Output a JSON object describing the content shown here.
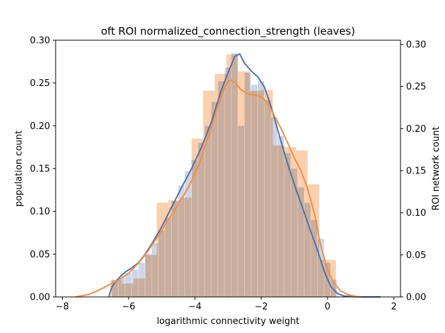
{
  "chart_data": {
    "type": "bar",
    "title": "oft ROI normalized_connection_strength (leaves)",
    "xlabel": "logarithmic connectivity weight",
    "ylabel_left": "population count",
    "ylabel_right": "ROI network count",
    "xlim": [
      -8.2,
      2.2
    ],
    "ylim_left": [
      0,
      0.3
    ],
    "ylim_right": [
      0,
      0.305
    ],
    "x_ticks": [
      -8,
      -6,
      -4,
      -2,
      0,
      2
    ],
    "x_tick_labels": [
      "−8",
      "−6",
      "−4",
      "−2",
      "0",
      "2"
    ],
    "y_ticks_left": [
      0,
      0.05,
      0.1,
      0.15,
      0.2,
      0.25,
      0.3
    ],
    "y_tick_labels_left": [
      "0.00",
      "0.05",
      "0.10",
      "0.15",
      "0.20",
      "0.25",
      "0.30"
    ],
    "y_ticks_right": [
      0,
      0.05,
      0.1,
      0.15,
      0.2,
      0.25,
      0.3
    ],
    "y_tick_labels_right": [
      "0.00",
      "0.05",
      "0.10",
      "0.15",
      "0.20",
      "0.25",
      "0.30"
    ],
    "colors": {
      "population": "#4c72b0",
      "roi": "#f28e3f",
      "population_fill": "#aabbd9",
      "roi_fill": "#f9c8a0"
    },
    "series": [
      {
        "key": "population_hist",
        "kind": "hist",
        "bins": [
          [
            -6.5,
            -6.3,
            0.02
          ],
          [
            -6.3,
            -6.1,
            0.022
          ],
          [
            -6.1,
            -5.9,
            0.028
          ],
          [
            -5.9,
            -5.7,
            0.032
          ],
          [
            -5.7,
            -5.5,
            0.04
          ],
          [
            -5.5,
            -5.3,
            0.05
          ],
          [
            -5.3,
            -5.1,
            0.063
          ],
          [
            -5.1,
            -4.9,
            0.078
          ],
          [
            -4.9,
            -4.7,
            0.093
          ],
          [
            -4.7,
            -4.5,
            0.112
          ],
          [
            -4.5,
            -4.3,
            0.13
          ],
          [
            -4.3,
            -4.1,
            0.147
          ],
          [
            -4.1,
            -3.9,
            0.16
          ],
          [
            -3.9,
            -3.7,
            0.18
          ],
          [
            -3.7,
            -3.5,
            0.2
          ],
          [
            -3.5,
            -3.3,
            0.228
          ],
          [
            -3.3,
            -3.1,
            0.252
          ],
          [
            -3.1,
            -2.9,
            0.268
          ],
          [
            -2.9,
            -2.7,
            0.285
          ],
          [
            -2.7,
            -2.5,
            0.2
          ],
          [
            -2.5,
            -2.3,
            0.262
          ],
          [
            -2.3,
            -2.1,
            0.248
          ],
          [
            -2.1,
            -1.9,
            0.252
          ],
          [
            -1.9,
            -1.7,
            0.23
          ],
          [
            -1.7,
            -1.5,
            0.21
          ],
          [
            -1.5,
            -1.3,
            0.188
          ],
          [
            -1.3,
            -1.1,
            0.168
          ],
          [
            -1.1,
            -0.9,
            0.15
          ],
          [
            -0.9,
            -0.7,
            0.128
          ],
          [
            -0.7,
            -0.5,
            0.11
          ],
          [
            -0.5,
            -0.3,
            0.09
          ],
          [
            -0.3,
            -0.1,
            0.068
          ],
          [
            -0.1,
            0.1,
            0.04
          ],
          [
            0.1,
            0.3,
            0.02
          ]
        ]
      },
      {
        "key": "roi_hist",
        "kind": "hist",
        "bins": [
          [
            -6.55,
            -6.2,
            0.02
          ],
          [
            -6.2,
            -5.85,
            0.016
          ],
          [
            -5.85,
            -5.5,
            0.022
          ],
          [
            -5.5,
            -5.15,
            0.05
          ],
          [
            -5.15,
            -4.8,
            0.112
          ],
          [
            -4.8,
            -4.45,
            0.115
          ],
          [
            -4.45,
            -4.1,
            0.118
          ],
          [
            -4.1,
            -3.75,
            0.188
          ],
          [
            -3.75,
            -3.4,
            0.245
          ],
          [
            -3.4,
            -3.05,
            0.265
          ],
          [
            -3.05,
            -2.7,
            0.288
          ],
          [
            -2.7,
            -2.35,
            0.268
          ],
          [
            -2.35,
            -2.0,
            0.245
          ],
          [
            -2.0,
            -1.65,
            0.246
          ],
          [
            -1.65,
            -1.3,
            0.18
          ],
          [
            -1.3,
            -0.95,
            0.178
          ],
          [
            -0.95,
            -0.6,
            0.174
          ],
          [
            -0.6,
            -0.25,
            0.134
          ],
          [
            -0.25,
            0.1,
            0.044
          ],
          [
            0.1,
            0.25,
            0.044
          ]
        ]
      },
      {
        "key": "population_kde",
        "kind": "line",
        "x": [
          -6.6,
          -6.5,
          -6.3,
          -6.1,
          -5.9,
          -5.7,
          -5.5,
          -5.3,
          -5.0,
          -4.7,
          -4.4,
          -4.1,
          -3.8,
          -3.5,
          -3.2,
          -3.0,
          -2.8,
          -2.65,
          -2.5,
          -2.3,
          -2.1,
          -1.9,
          -1.7,
          -1.5,
          -1.3,
          -1.1,
          -0.9,
          -0.7,
          -0.5,
          -0.3,
          -0.1,
          0.1,
          0.3,
          0.5,
          1.0,
          1.6
        ],
        "y": [
          0.0,
          0.012,
          0.022,
          0.029,
          0.034,
          0.04,
          0.05,
          0.062,
          0.082,
          0.105,
          0.128,
          0.15,
          0.175,
          0.205,
          0.242,
          0.262,
          0.281,
          0.284,
          0.273,
          0.264,
          0.257,
          0.245,
          0.222,
          0.195,
          0.168,
          0.143,
          0.12,
          0.098,
          0.076,
          0.054,
          0.03,
          0.012,
          0.004,
          0.001,
          0.0,
          0.0
        ]
      },
      {
        "key": "roi_kde",
        "kind": "line",
        "x": [
          -7.6,
          -7.2,
          -6.9,
          -6.6,
          -6.3,
          -6.0,
          -5.7,
          -5.4,
          -5.1,
          -4.8,
          -4.5,
          -4.2,
          -3.9,
          -3.6,
          -3.3,
          -3.1,
          -2.95,
          -2.8,
          -2.6,
          -2.4,
          -2.2,
          -2.0,
          -1.8,
          -1.6,
          -1.4,
          -1.2,
          -1.0,
          -0.8,
          -0.6,
          -0.4,
          -0.2,
          0.0,
          0.2,
          0.4,
          0.6,
          0.8,
          1.0
        ],
        "y": [
          0.0,
          0.003,
          0.008,
          0.014,
          0.02,
          0.028,
          0.04,
          0.055,
          0.073,
          0.092,
          0.11,
          0.13,
          0.155,
          0.19,
          0.228,
          0.25,
          0.258,
          0.255,
          0.246,
          0.241,
          0.24,
          0.238,
          0.23,
          0.215,
          0.2,
          0.183,
          0.165,
          0.15,
          0.128,
          0.1,
          0.06,
          0.032,
          0.016,
          0.007,
          0.003,
          0.001,
          0.0
        ]
      }
    ]
  }
}
